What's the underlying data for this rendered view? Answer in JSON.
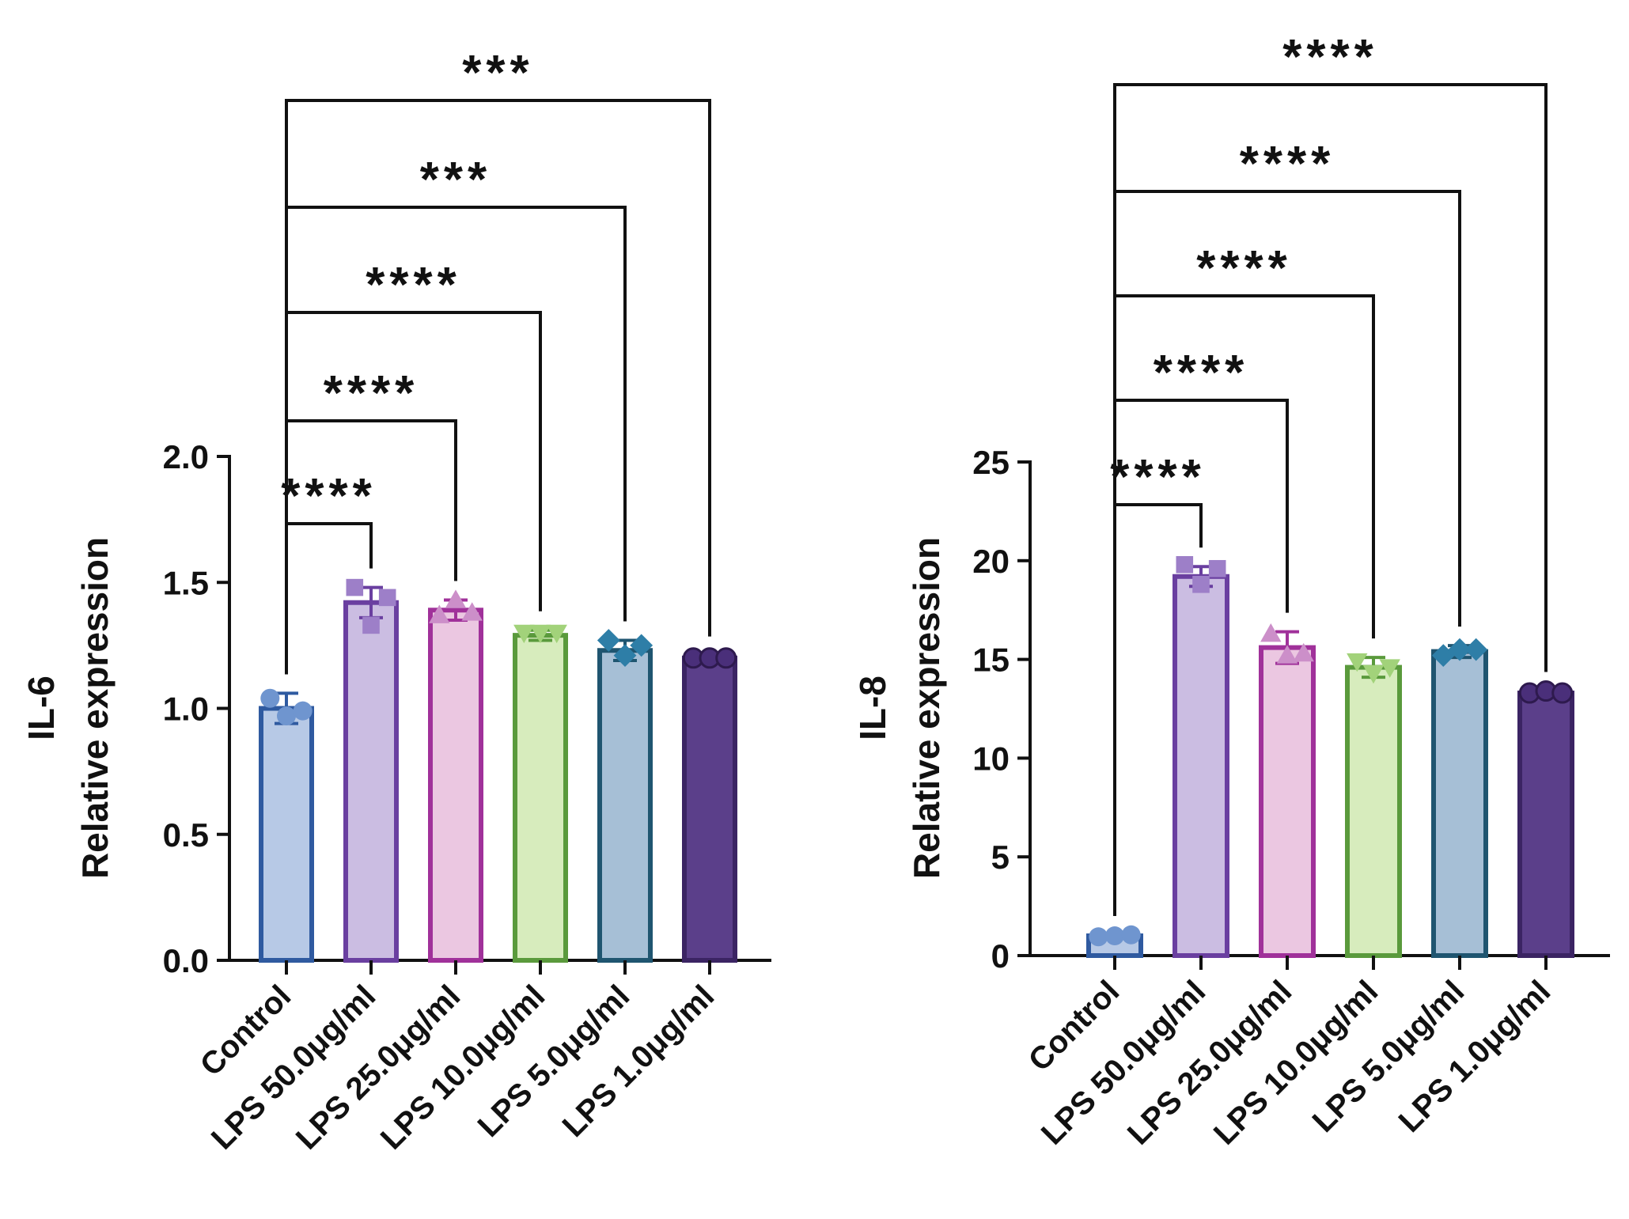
{
  "chart_data": [
    {
      "type": "bar",
      "title": "",
      "xlabel": "",
      "ylabel": [
        "IL-6",
        "Relative expression"
      ],
      "ylim": [
        0,
        2.0
      ],
      "yticks": [
        "0.0",
        "0.5",
        "1.0",
        "1.5",
        "2.0"
      ],
      "grid": false,
      "categories": [
        "Control",
        "LPS 50.0μg/ml",
        "LPS 25.0μg/ml",
        "LPS 10.0μg/ml",
        "LPS 5.0μg/ml",
        "LPS 1.0μg/ml"
      ],
      "values": [
        1.0,
        1.42,
        1.39,
        1.29,
        1.23,
        1.2
      ],
      "errors": [
        0.06,
        0.06,
        0.04,
        0.02,
        0.04,
        0.01
      ],
      "points": [
        [
          1.04,
          0.97,
          0.99
        ],
        [
          1.48,
          1.33,
          1.44
        ],
        [
          1.37,
          1.43,
          1.38
        ],
        [
          1.3,
          1.3,
          1.3
        ],
        [
          1.27,
          1.21,
          1.25
        ],
        [
          1.2,
          1.2,
          1.2
        ]
      ],
      "markers": [
        "circle",
        "square",
        "triangle-up",
        "triangle-down",
        "diamond",
        "circle"
      ],
      "fills": [
        "#b7c9e6",
        "#cbbde2",
        "#ebc7e1",
        "#d7ecbd",
        "#a6bfd6",
        "#5b3f8a"
      ],
      "strokes": [
        "#2f5aa0",
        "#6a3fa0",
        "#a0319a",
        "#5a9a3c",
        "#1f5570",
        "#3b2463"
      ],
      "point_colors": [
        "#6f95cf",
        "#9d7fc8",
        "#cc8fc9",
        "#a2d27a",
        "#2e7ea7",
        "#4a2f7a"
      ],
      "significance": [
        {
          "label": "****",
          "from": "Control",
          "to": "LPS 50.0μg/ml"
        },
        {
          "label": "****",
          "from": "Control",
          "to": "LPS 25.0μg/ml"
        },
        {
          "label": "****",
          "from": "Control",
          "to": "LPS 10.0μg/ml"
        },
        {
          "label": "***",
          "from": "Control",
          "to": "LPS 5.0μg/ml"
        },
        {
          "label": "***",
          "from": "Control",
          "to": "LPS 1.0μg/ml"
        }
      ]
    },
    {
      "type": "bar",
      "title": "",
      "xlabel": "",
      "ylabel": [
        "IL-8",
        "Relative expression"
      ],
      "ylim": [
        0,
        25
      ],
      "yticks": [
        "0",
        "5",
        "10",
        "15",
        "20",
        "25"
      ],
      "grid": false,
      "categories": [
        "Control",
        "LPS 50.0μg/ml",
        "LPS 25.0μg/ml",
        "LPS 10.0μg/ml",
        "LPS 5.0μg/ml",
        "LPS 1.0μg/ml"
      ],
      "values": [
        1.0,
        19.2,
        15.6,
        14.6,
        15.4,
        13.3
      ],
      "errors": [
        0.05,
        0.5,
        0.8,
        0.5,
        0.3,
        0.1
      ],
      "points": [
        [
          0.95,
          1.0,
          1.05
        ],
        [
          19.8,
          18.8,
          19.6
        ],
        [
          16.3,
          15.2,
          15.3
        ],
        [
          14.9,
          14.3,
          14.6
        ],
        [
          15.2,
          15.5,
          15.5
        ],
        [
          13.3,
          13.4,
          13.3
        ]
      ],
      "markers": [
        "circle",
        "square",
        "triangle-up",
        "triangle-down",
        "diamond",
        "circle"
      ],
      "fills": [
        "#b7c9e6",
        "#cbbde2",
        "#ebc7e1",
        "#d7ecbd",
        "#a6bfd6",
        "#5b3f8a"
      ],
      "strokes": [
        "#2f5aa0",
        "#6a3fa0",
        "#a0319a",
        "#5a9a3c",
        "#1f5570",
        "#3b2463"
      ],
      "point_colors": [
        "#6f95cf",
        "#9d7fc8",
        "#cc8fc9",
        "#a2d27a",
        "#2e7ea7",
        "#4a2f7a"
      ],
      "significance": [
        {
          "label": "****",
          "from": "Control",
          "to": "LPS 50.0μg/ml"
        },
        {
          "label": "****",
          "from": "Control",
          "to": "LPS 25.0μg/ml"
        },
        {
          "label": "****",
          "from": "Control",
          "to": "LPS 10.0μg/ml"
        },
        {
          "label": "****",
          "from": "Control",
          "to": "LPS 5.0μg/ml"
        },
        {
          "label": "****",
          "from": "Control",
          "to": "LPS 1.0μg/ml"
        }
      ]
    }
  ]
}
